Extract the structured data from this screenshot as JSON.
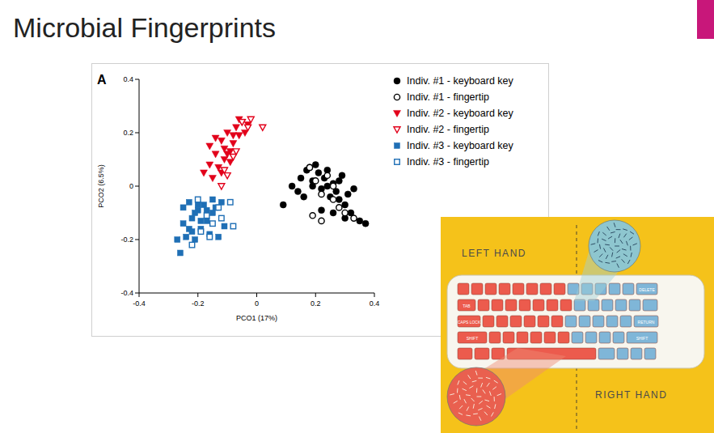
{
  "slide_title": "Microbial Fingerprints",
  "chart_data": {
    "type": "scatter",
    "panel_label": "A",
    "x_label": "PCO1 (17%)",
    "y_label": "PCO2 (6.5%)",
    "xlim": [
      -0.4,
      0.4
    ],
    "ylim": [
      -0.4,
      0.4
    ],
    "xticks": [
      -0.4,
      -0.2,
      0,
      0.2,
      0.4
    ],
    "yticks": [
      -0.4,
      -0.2,
      0,
      0.2,
      0.4
    ],
    "grid": false,
    "legend": "top-right",
    "series": [
      {
        "name": "Indiv. #1 - keyboard key",
        "color": "#000000",
        "marker": "circle",
        "x": [
          0.09,
          0.12,
          0.14,
          0.15,
          0.17,
          0.18,
          0.19,
          0.2,
          0.21,
          0.22,
          0.23,
          0.24,
          0.25,
          0.26,
          0.27,
          0.28,
          0.29,
          0.3,
          0.31,
          0.32,
          0.33,
          0.35,
          0.37,
          0.16,
          0.22,
          0.26,
          0.19,
          0.24,
          0.28,
          0.3
        ],
        "values": [
          -0.07,
          0.0,
          -0.02,
          0.03,
          0.06,
          0.07,
          0.02,
          0.08,
          0.05,
          -0.01,
          0.03,
          0.06,
          -0.04,
          0.01,
          -0.02,
          -0.05,
          0.04,
          -0.07,
          -0.03,
          -0.1,
          -0.01,
          -0.13,
          -0.14,
          -0.04,
          -0.09,
          -0.1,
          0.0,
          0.0,
          0.02,
          -0.12
        ]
      },
      {
        "name": "Indiv. #1 - fingertip",
        "color": "#000000",
        "marker": "circle-open",
        "x": [
          0.18,
          0.2,
          0.22,
          0.24,
          0.26,
          0.28,
          0.3,
          0.33,
          0.22,
          0.26,
          0.19
        ],
        "values": [
          0.07,
          0.02,
          -0.03,
          0.04,
          -0.05,
          -0.08,
          -0.1,
          -0.12,
          -0.13,
          0.0,
          -0.11
        ]
      },
      {
        "name": "Indiv. #2 - keyboard key",
        "color": "#e2001a",
        "marker": "triangle-down",
        "x": [
          -0.18,
          -0.16,
          -0.15,
          -0.14,
          -0.13,
          -0.12,
          -0.11,
          -0.1,
          -0.09,
          -0.08,
          -0.07,
          -0.06,
          -0.05,
          -0.04,
          -0.03,
          -0.16,
          -0.12,
          -0.1,
          -0.08,
          -0.06,
          -0.14,
          -0.11,
          -0.09
        ],
        "values": [
          0.05,
          0.08,
          0.03,
          0.12,
          0.07,
          0.17,
          0.1,
          0.2,
          0.13,
          0.16,
          0.22,
          0.19,
          0.24,
          0.2,
          0.23,
          0.15,
          0.05,
          0.12,
          0.19,
          0.25,
          0.18,
          0.14,
          0.09
        ]
      },
      {
        "name": "Indiv. #2 - fingertip",
        "color": "#e2001a",
        "marker": "triangle-down-open",
        "x": [
          -0.12,
          -0.1,
          -0.08,
          -0.05,
          -0.03,
          0.02,
          -0.07,
          -0.02,
          -0.11
        ],
        "values": [
          0.0,
          0.04,
          0.11,
          0.24,
          0.22,
          0.22,
          0.13,
          0.25,
          0.06
        ]
      },
      {
        "name": "Indiv. #3 - keyboard key",
        "color": "#1f6fb5",
        "marker": "square",
        "x": [
          -0.27,
          -0.26,
          -0.25,
          -0.24,
          -0.23,
          -0.22,
          -0.21,
          -0.2,
          -0.19,
          -0.18,
          -0.17,
          -0.16,
          -0.15,
          -0.14,
          -0.13,
          -0.12,
          -0.11,
          -0.25,
          -0.23,
          -0.21,
          -0.19,
          -0.17,
          -0.15,
          -0.22,
          -0.2
        ],
        "values": [
          -0.2,
          -0.25,
          -0.14,
          -0.19,
          -0.06,
          -0.12,
          -0.2,
          -0.09,
          -0.16,
          -0.07,
          -0.13,
          -0.18,
          -0.1,
          -0.08,
          -0.19,
          -0.06,
          -0.15,
          -0.08,
          -0.16,
          -0.1,
          -0.13,
          -0.09,
          -0.05,
          -0.17,
          -0.07
        ]
      },
      {
        "name": "Indiv. #3 - fingertip",
        "color": "#1f6fb5",
        "marker": "square-open",
        "x": [
          -0.22,
          -0.19,
          -0.17,
          -0.15,
          -0.13,
          -0.12,
          -0.09,
          -0.08,
          -0.2,
          -0.16
        ],
        "values": [
          -0.22,
          -0.17,
          -0.11,
          -0.14,
          -0.08,
          -0.12,
          -0.06,
          -0.15,
          -0.05,
          -0.19
        ]
      }
    ]
  },
  "illustration": {
    "left_label": "LEFT HAND",
    "right_label": "RIGHT HAND",
    "key_labels": [
      "DELETE",
      "TAB",
      "CAPS LOCK",
      "RETURN",
      "SHIFT",
      "SHIFT"
    ]
  }
}
